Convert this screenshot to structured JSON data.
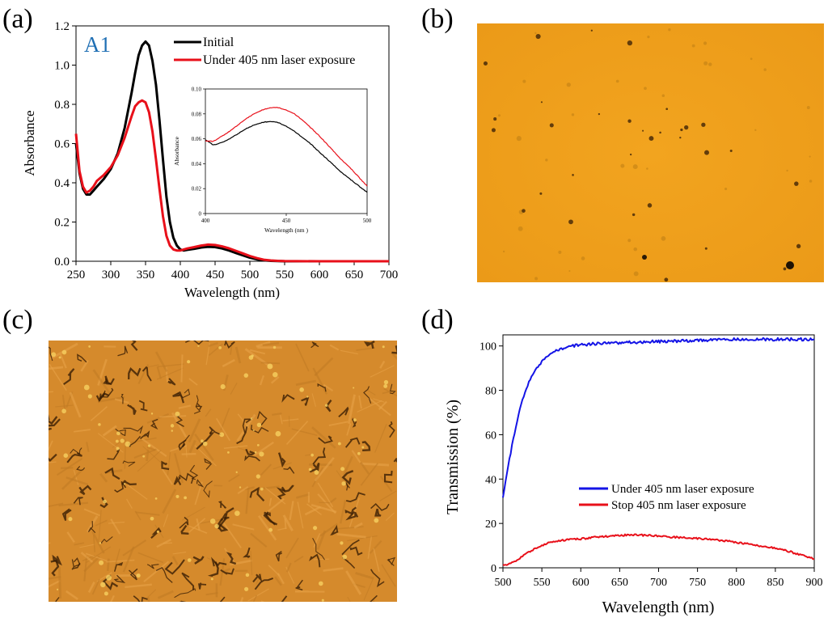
{
  "panels": {
    "a": "(a)",
    "b": "(b)",
    "c": "(c)",
    "d": "(d)"
  },
  "colors": {
    "initial": "#000000",
    "under": "#e8101a",
    "under_d": "#1414e6",
    "stop_d": "#e8101a",
    "sample_label": "#1f6fb4",
    "pom_b": "#f0a21e",
    "pom_c": "#d68a2a"
  },
  "chart_data": [
    {
      "type": "line",
      "panel": "a",
      "sample_label": "A1",
      "xlabel": "Wavelength (nm)",
      "ylabel": "Absorbance",
      "xlim": [
        250,
        700
      ],
      "ylim": [
        0,
        1.2
      ],
      "xticks": [
        "250",
        "300",
        "350",
        "400",
        "450",
        "500",
        "550",
        "600",
        "650",
        "700"
      ],
      "yticks": [
        "0.0",
        "0.2",
        "0.4",
        "0.6",
        "0.8",
        "1.0",
        "1.2"
      ],
      "legend": [
        "Initial",
        "Under 405 nm laser exposure"
      ],
      "series": [
        {
          "name": "Initial",
          "x": [
            250,
            255,
            260,
            265,
            270,
            275,
            280,
            290,
            300,
            310,
            320,
            330,
            335,
            340,
            345,
            350,
            355,
            360,
            365,
            370,
            375,
            380,
            385,
            390,
            395,
            400,
            405,
            410,
            420,
            430,
            440,
            450,
            460,
            470,
            480,
            490,
            500,
            510,
            520,
            530,
            540,
            550,
            600,
            650,
            700
          ],
          "y": [
            0.6,
            0.45,
            0.37,
            0.34,
            0.34,
            0.36,
            0.38,
            0.42,
            0.47,
            0.55,
            0.68,
            0.86,
            0.96,
            1.05,
            1.1,
            1.12,
            1.1,
            1.02,
            0.9,
            0.72,
            0.52,
            0.33,
            0.2,
            0.12,
            0.08,
            0.06,
            0.055,
            0.058,
            0.063,
            0.07,
            0.074,
            0.072,
            0.065,
            0.055,
            0.042,
            0.03,
            0.018,
            0.01,
            0.005,
            0.002,
            0.001,
            0.0,
            0.0,
            0.0,
            0.0
          ]
        },
        {
          "name": "Under 405 nm laser exposure",
          "x": [
            250,
            255,
            260,
            265,
            270,
            275,
            280,
            290,
            300,
            310,
            320,
            330,
            335,
            340,
            345,
            350,
            355,
            360,
            365,
            370,
            375,
            380,
            385,
            390,
            395,
            400,
            405,
            410,
            420,
            430,
            440,
            450,
            460,
            470,
            480,
            490,
            500,
            510,
            520,
            530,
            540,
            550,
            600,
            650,
            700
          ],
          "y": [
            0.65,
            0.46,
            0.38,
            0.35,
            0.36,
            0.38,
            0.41,
            0.44,
            0.48,
            0.54,
            0.63,
            0.74,
            0.79,
            0.81,
            0.82,
            0.81,
            0.76,
            0.66,
            0.52,
            0.37,
            0.23,
            0.13,
            0.08,
            0.06,
            0.055,
            0.055,
            0.06,
            0.065,
            0.072,
            0.08,
            0.085,
            0.083,
            0.076,
            0.066,
            0.053,
            0.04,
            0.027,
            0.016,
            0.008,
            0.004,
            0.002,
            0.001,
            0.0,
            0.0,
            0.0
          ]
        }
      ]
    },
    {
      "type": "line",
      "panel": "a-inset",
      "xlabel": "Wavelength (nm )",
      "ylabel": "Absorbance",
      "xlim": [
        400,
        500
      ],
      "ylim": [
        0,
        0.1
      ],
      "xticks": [
        "400",
        "450",
        "500"
      ],
      "yticks": [
        "0",
        "0.02",
        "0.04",
        "0.06",
        "0.08",
        "0.10"
      ],
      "series": [
        {
          "name": "Initial",
          "x": [
            400,
            405,
            410,
            415,
            420,
            425,
            430,
            435,
            440,
            445,
            450,
            455,
            460,
            465,
            470,
            475,
            480,
            485,
            490,
            495,
            500
          ],
          "y": [
            0.059,
            0.055,
            0.057,
            0.06,
            0.064,
            0.068,
            0.071,
            0.073,
            0.074,
            0.073,
            0.07,
            0.066,
            0.061,
            0.056,
            0.05,
            0.044,
            0.038,
            0.032,
            0.027,
            0.022,
            0.017
          ]
        },
        {
          "name": "Under 405 nm laser exposure",
          "x": [
            400,
            405,
            410,
            415,
            420,
            425,
            430,
            435,
            440,
            445,
            450,
            455,
            460,
            465,
            470,
            475,
            480,
            485,
            490,
            495,
            500
          ],
          "y": [
            0.058,
            0.058,
            0.062,
            0.066,
            0.071,
            0.076,
            0.08,
            0.083,
            0.085,
            0.085,
            0.083,
            0.08,
            0.075,
            0.069,
            0.063,
            0.056,
            0.049,
            0.042,
            0.036,
            0.029,
            0.022
          ]
        }
      ]
    },
    {
      "type": "line",
      "panel": "d",
      "xlabel": "Wavelength (nm)",
      "ylabel": "Transmission (%)",
      "xlim": [
        500,
        900
      ],
      "ylim": [
        0,
        105
      ],
      "xticks": [
        "500",
        "550",
        "600",
        "650",
        "700",
        "750",
        "800",
        "850",
        "900"
      ],
      "yticks": [
        "0",
        "20",
        "40",
        "60",
        "80",
        "100"
      ],
      "legend": [
        "Under 405 nm laser exposure",
        "Stop 405 nm laser exposure"
      ],
      "series": [
        {
          "name": "Under 405 nm laser exposure",
          "x": [
            500,
            505,
            510,
            515,
            520,
            525,
            530,
            535,
            540,
            545,
            550,
            555,
            560,
            570,
            580,
            590,
            600,
            620,
            650,
            700,
            750,
            800,
            850,
            900
          ],
          "y": [
            31,
            42,
            52,
            61,
            69,
            76,
            81,
            85,
            88,
            91,
            93,
            95,
            96,
            98,
            99,
            100,
            100.5,
            101,
            101.5,
            102,
            102.5,
            103,
            103,
            103
          ]
        },
        {
          "name": "Stop 405 nm laser exposure",
          "x": [
            500,
            505,
            510,
            520,
            530,
            540,
            550,
            560,
            570,
            580,
            600,
            620,
            640,
            660,
            680,
            700,
            720,
            750,
            780,
            800,
            820,
            850,
            870,
            880,
            890,
            900
          ],
          "y": [
            1,
            1,
            2,
            4,
            6.5,
            8.5,
            10,
            11.5,
            12,
            12.5,
            13,
            13.8,
            14.3,
            14.8,
            14.7,
            14.3,
            13.8,
            13.2,
            12.4,
            11.5,
            10.5,
            8.8,
            7.2,
            6,
            5,
            4
          ]
        }
      ]
    }
  ]
}
